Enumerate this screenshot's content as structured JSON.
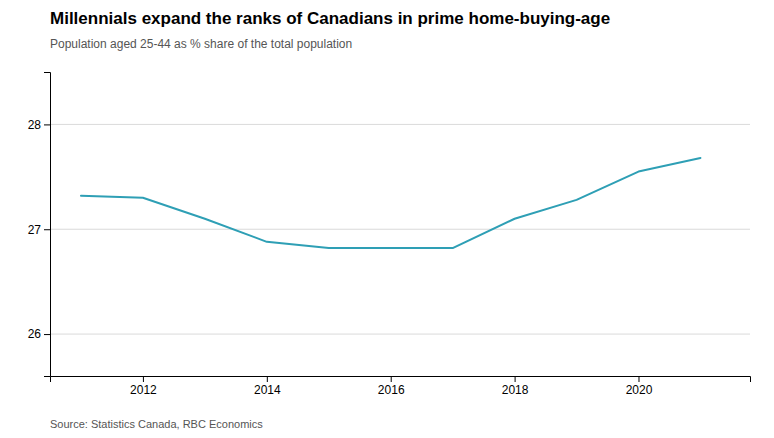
{
  "chart_data": {
    "type": "line",
    "title": "Millennials expand the ranks of Canadians in prime home-buying-age",
    "subtitle": "Population aged 25-44 as % share of the total population",
    "source": "Source: Statistics Canada, RBC Economics",
    "x": [
      2011,
      2012,
      2013,
      2014,
      2015,
      2016,
      2017,
      2018,
      2019,
      2020,
      2021
    ],
    "values": [
      27.32,
      27.3,
      27.1,
      26.88,
      26.82,
      26.82,
      26.82,
      27.1,
      27.28,
      27.55,
      27.68
    ],
    "color": "#2e9fb5",
    "xlim": [
      2010.5,
      2021.8
    ],
    "xticks": [
      2012,
      2014,
      2016,
      2018,
      2020
    ],
    "ylim": [
      25.6,
      28.5
    ],
    "yticks": [
      26,
      27,
      28
    ],
    "grid": true
  }
}
